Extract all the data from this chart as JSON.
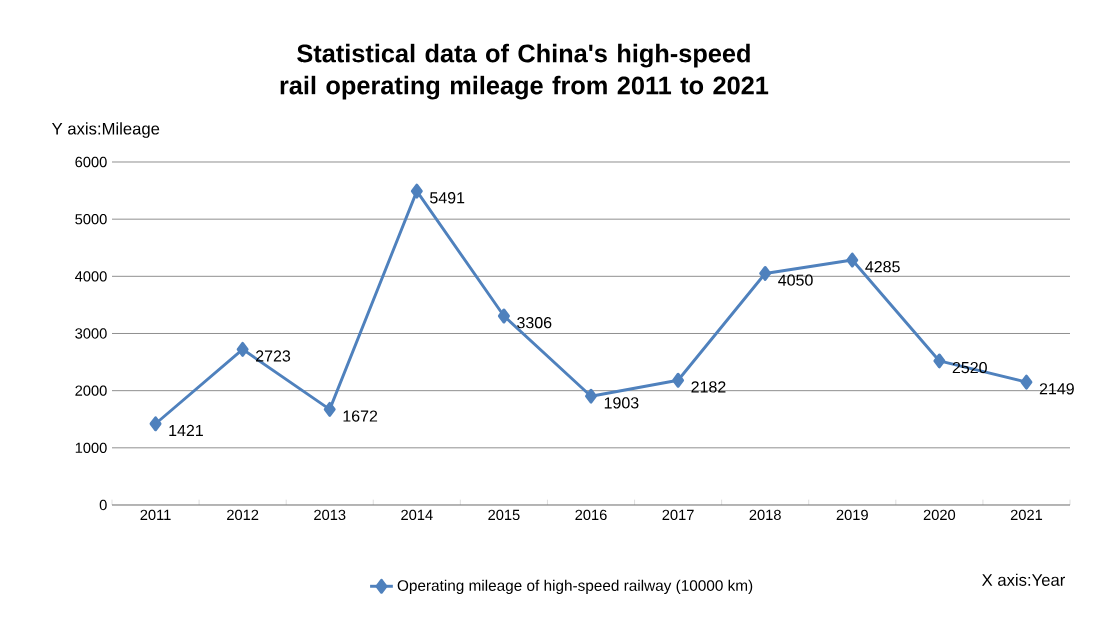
{
  "chart_data": {
    "type": "line",
    "title": "Statistical data of China's high-speed rail operating mileage from 2011 to 2021",
    "xlabel": "X axis:Year",
    "ylabel": "Y axis:Mileage",
    "categories": [
      "2011",
      "2012",
      "2013",
      "2014",
      "2015",
      "2016",
      "2017",
      "2018",
      "2019",
      "2020",
      "2021"
    ],
    "series": [
      {
        "name": "Operating mileage of high-speed railway (10000 km)",
        "color": "#4f81bd",
        "values": [
          1421,
          2723,
          1672,
          5491,
          3306,
          1903,
          2182,
          4050,
          4285,
          2520,
          2149
        ]
      }
    ],
    "ylim": [
      0,
      6000
    ],
    "yticks": [
      0,
      1000,
      2000,
      3000,
      4000,
      5000,
      6000
    ],
    "grid": "y",
    "legend": "bottom",
    "marker": "diamond",
    "line_style": "solid",
    "data_labels": true
  }
}
